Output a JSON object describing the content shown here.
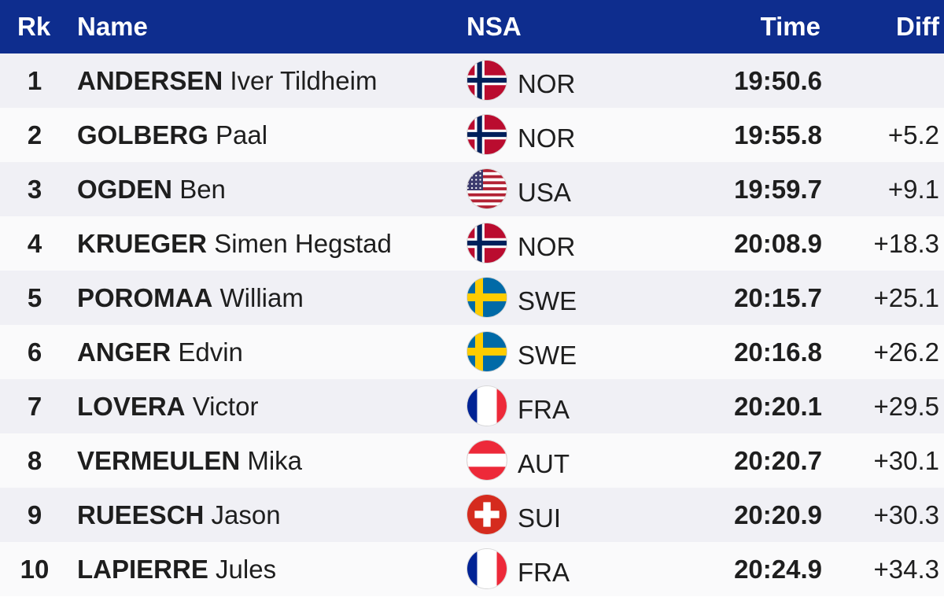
{
  "header": {
    "rk": "Rk",
    "name": "Name",
    "nsa": "NSA",
    "time": "Time",
    "diff": "Diff"
  },
  "colors": {
    "header_bg": "#0e2d8e",
    "row_odd": "#f0f0f5",
    "row_even": "#fafafb"
  },
  "rows": [
    {
      "rk": "1",
      "surname": "ANDERSEN",
      "given": "Iver Tildheim",
      "nsa": "NOR",
      "flag": "norway-flag-icon",
      "time": "19:50.6",
      "diff": ""
    },
    {
      "rk": "2",
      "surname": "GOLBERG",
      "given": "Paal",
      "nsa": "NOR",
      "flag": "norway-flag-icon",
      "time": "19:55.8",
      "diff": "+5.2"
    },
    {
      "rk": "3",
      "surname": "OGDEN",
      "given": "Ben",
      "nsa": "USA",
      "flag": "usa-flag-icon",
      "time": "19:59.7",
      "diff": "+9.1"
    },
    {
      "rk": "4",
      "surname": "KRUEGER",
      "given": "Simen Hegstad",
      "nsa": "NOR",
      "flag": "norway-flag-icon",
      "time": "20:08.9",
      "diff": "+18.3"
    },
    {
      "rk": "5",
      "surname": "POROMAA",
      "given": "William",
      "nsa": "SWE",
      "flag": "sweden-flag-icon",
      "time": "20:15.7",
      "diff": "+25.1"
    },
    {
      "rk": "6",
      "surname": "ANGER",
      "given": "Edvin",
      "nsa": "SWE",
      "flag": "sweden-flag-icon",
      "time": "20:16.8",
      "diff": "+26.2"
    },
    {
      "rk": "7",
      "surname": "LOVERA",
      "given": "Victor",
      "nsa": "FRA",
      "flag": "france-flag-icon",
      "time": "20:20.1",
      "diff": "+29.5"
    },
    {
      "rk": "8",
      "surname": "VERMEULEN",
      "given": "Mika",
      "nsa": "AUT",
      "flag": "austria-flag-icon",
      "time": "20:20.7",
      "diff": "+30.1"
    },
    {
      "rk": "9",
      "surname": "RUEESCH",
      "given": "Jason",
      "nsa": "SUI",
      "flag": "switzerland-flag-icon",
      "time": "20:20.9",
      "diff": "+30.3"
    },
    {
      "rk": "10",
      "surname": "LAPIERRE",
      "given": "Jules",
      "nsa": "FRA",
      "flag": "france-flag-icon",
      "time": "20:24.9",
      "diff": "+34.3"
    }
  ]
}
